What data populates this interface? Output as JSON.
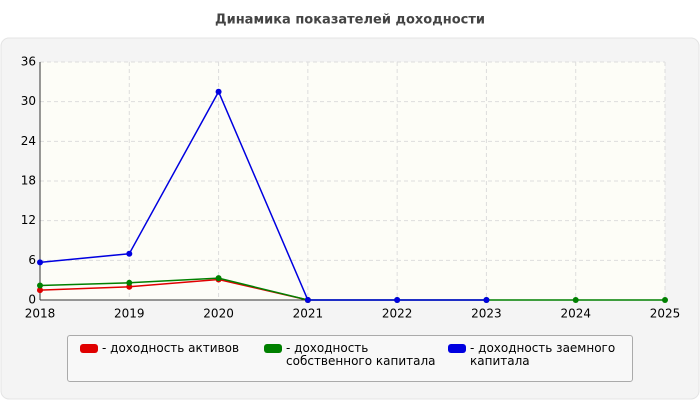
{
  "chart_data": {
    "type": "line",
    "title": "Динамика показателей доходности",
    "x": [
      2018,
      2019,
      2020,
      2021,
      2022,
      2023,
      2024,
      2025
    ],
    "xlim": [
      2018,
      2025
    ],
    "xticks": [
      2018,
      2019,
      2020,
      2021,
      2022,
      2023,
      2024,
      2025
    ],
    "ylim": [
      0,
      36
    ],
    "yticks": [
      0,
      6,
      12,
      18,
      24,
      30,
      36
    ],
    "grid": true,
    "series": [
      {
        "name": "- доходность активов",
        "color": "#e00000",
        "values": [
          1.5,
          2.0,
          3.1,
          0,
          null,
          null,
          null,
          null
        ]
      },
      {
        "name": "- доходность собственного капитала",
        "color": "#008000",
        "values": [
          2.2,
          2.6,
          3.3,
          0,
          0,
          0,
          0,
          0
        ]
      },
      {
        "name": "- доходность заемного капитала",
        "color": "#0000e0",
        "values": [
          5.7,
          7.0,
          31.5,
          0,
          0,
          0,
          null,
          null
        ]
      }
    ]
  }
}
